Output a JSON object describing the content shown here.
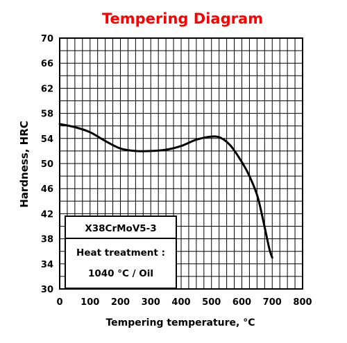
{
  "chart_data": {
    "type": "line",
    "title": "Tempering Diagram",
    "title_color": "#ff0000",
    "xlabel": "Tempering temperature, °C",
    "ylabel": "Hardness, HRC",
    "xlim": [
      0,
      800
    ],
    "ylim": [
      30,
      70
    ],
    "x_ticks": [
      "0",
      "100",
      "200",
      "300",
      "400",
      "500",
      "600",
      "700",
      "800"
    ],
    "y_ticks": [
      "30",
      "34",
      "38",
      "42",
      "46",
      "50",
      "54",
      "58",
      "62",
      "66",
      "70"
    ],
    "grid": true,
    "grid_step_x": 25,
    "grid_step_y": 2,
    "series": [
      {
        "x": [
          0,
          50,
          100,
          150,
          200,
          250,
          300,
          350,
          400,
          450,
          500,
          530,
          560,
          590,
          620,
          650,
          670,
          690,
          700
        ],
        "y": [
          56.3,
          55.8,
          55.0,
          53.6,
          52.4,
          52.0,
          52.0,
          52.2,
          52.8,
          53.8,
          54.3,
          54.1,
          53.0,
          51.0,
          48.5,
          45.0,
          41.0,
          36.5,
          35.0
        ],
        "color": "#000000"
      }
    ],
    "annotation": {
      "lines": [
        "X38CrMoV5-3",
        "Heat treatment :",
        "1040 °C / Oil"
      ],
      "placement": "bottom-left"
    }
  }
}
